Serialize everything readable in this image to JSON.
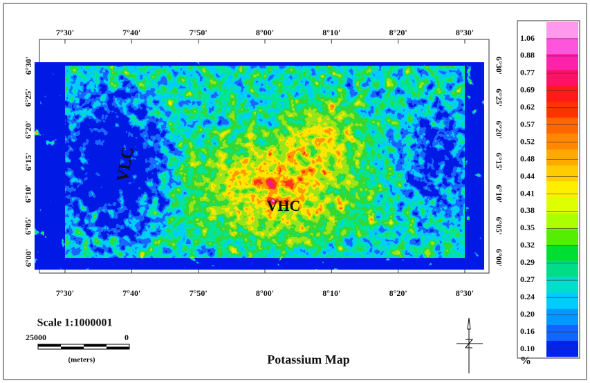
{
  "title": "Potassium Map",
  "labels": [
    "VLC",
    "VHC"
  ],
  "top_axis": [
    "7°30'",
    "7°40'",
    "7°50'",
    "8°00'",
    "8°10'",
    "8°20'",
    "8°30'"
  ],
  "bottom_axis": [
    "7°30'",
    "7°40'",
    "7°50'",
    "8°00'",
    "8°10'",
    "8°20'",
    "8°30'"
  ],
  "left_axis": [
    "6°30'",
    "6°25'",
    "6°20'",
    "6°15'",
    "6°10'",
    "6°05'",
    "6°00'"
  ],
  "right_axis": [
    "6°30'",
    "6°25'",
    "6°20'",
    "6°15'",
    "6°10'",
    "6°05'",
    "6°00'"
  ],
  "scale": {
    "title": "Scale 1:1000001",
    "left": "25000",
    "right": "0",
    "unit": "(meters)"
  },
  "legend": {
    "values": [
      "1.06",
      "0.88",
      "0.77",
      "0.69",
      "0.62",
      "0.57",
      "0.52",
      "0.48",
      "0.44",
      "0.41",
      "0.38",
      "0.35",
      "0.32",
      "0.29",
      "0.27",
      "0.24",
      "0.20",
      "0.16",
      "0.10"
    ],
    "unit": "%"
  }
}
